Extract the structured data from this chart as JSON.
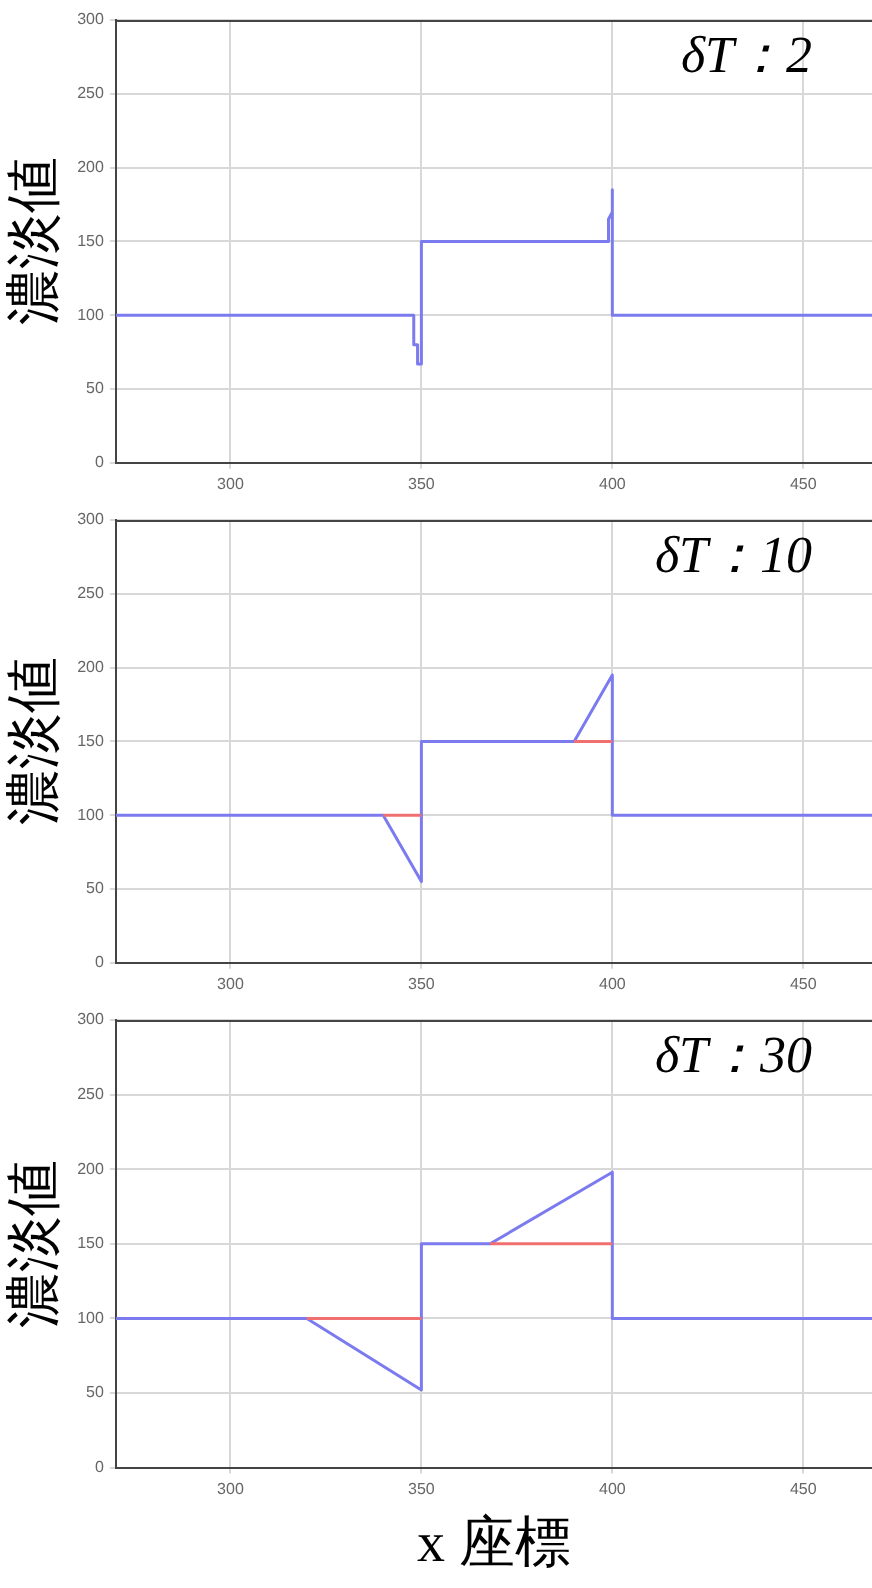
{
  "chart_data": [
    {
      "type": "line",
      "ylabel": "濃淡値",
      "annotations": [
        "δT：2"
      ],
      "xlim": [
        270,
        468
      ],
      "ylim": [
        0,
        300
      ],
      "xticks": [
        300,
        350,
        400,
        450
      ],
      "yticks": [
        0,
        50,
        100,
        150,
        200,
        250,
        300
      ],
      "grid": true,
      "marker": "none",
      "line_style": "solid",
      "series": [
        {
          "color": "#7b7bef",
          "x": [
            270,
            348,
            348,
            349,
            349,
            350,
            350,
            399,
            399,
            400,
            400,
            400,
            468
          ],
          "values": [
            100,
            100,
            80,
            80,
            67,
            67,
            150,
            150,
            165,
            170,
            185,
            100,
            100
          ]
        }
      ]
    },
    {
      "type": "line",
      "ylabel": "濃淡値",
      "annotations": [
        "δT：10"
      ],
      "xlim": [
        270,
        468
      ],
      "ylim": [
        0,
        300
      ],
      "xticks": [
        300,
        350,
        400,
        450
      ],
      "yticks": [
        0,
        50,
        100,
        150,
        200,
        250,
        300
      ],
      "grid": true,
      "marker": "none",
      "line_style": "solid",
      "series": [
        {
          "color": "#f07070",
          "x": [
            340,
            350,
            370,
            390,
            400
          ],
          "values": [
            100,
            100,
            null,
            150,
            150
          ]
        },
        {
          "color": "#7b7bef",
          "x": [
            270,
            340,
            350,
            350,
            390,
            400,
            400,
            468
          ],
          "values": [
            100,
            100,
            55,
            150,
            150,
            195,
            100,
            100
          ]
        }
      ]
    },
    {
      "type": "line",
      "ylabel": "濃淡値",
      "xlabel": "x 座標",
      "annotations": [
        "δT：30"
      ],
      "xlim": [
        270,
        468
      ],
      "ylim": [
        0,
        300
      ],
      "xticks": [
        300,
        350,
        400,
        450
      ],
      "yticks": [
        0,
        50,
        100,
        150,
        200,
        250,
        300
      ],
      "grid": true,
      "marker": "none",
      "line_style": "solid",
      "series": [
        {
          "color": "#f07070",
          "x": [
            320,
            350,
            360,
            368,
            400
          ],
          "values": [
            100,
            100,
            null,
            150,
            150
          ]
        },
        {
          "color": "#7b7bef",
          "x": [
            270,
            320,
            350,
            350,
            368,
            400,
            400,
            468
          ],
          "values": [
            100,
            100,
            52,
            150,
            150,
            198,
            100,
            100
          ]
        }
      ]
    }
  ]
}
